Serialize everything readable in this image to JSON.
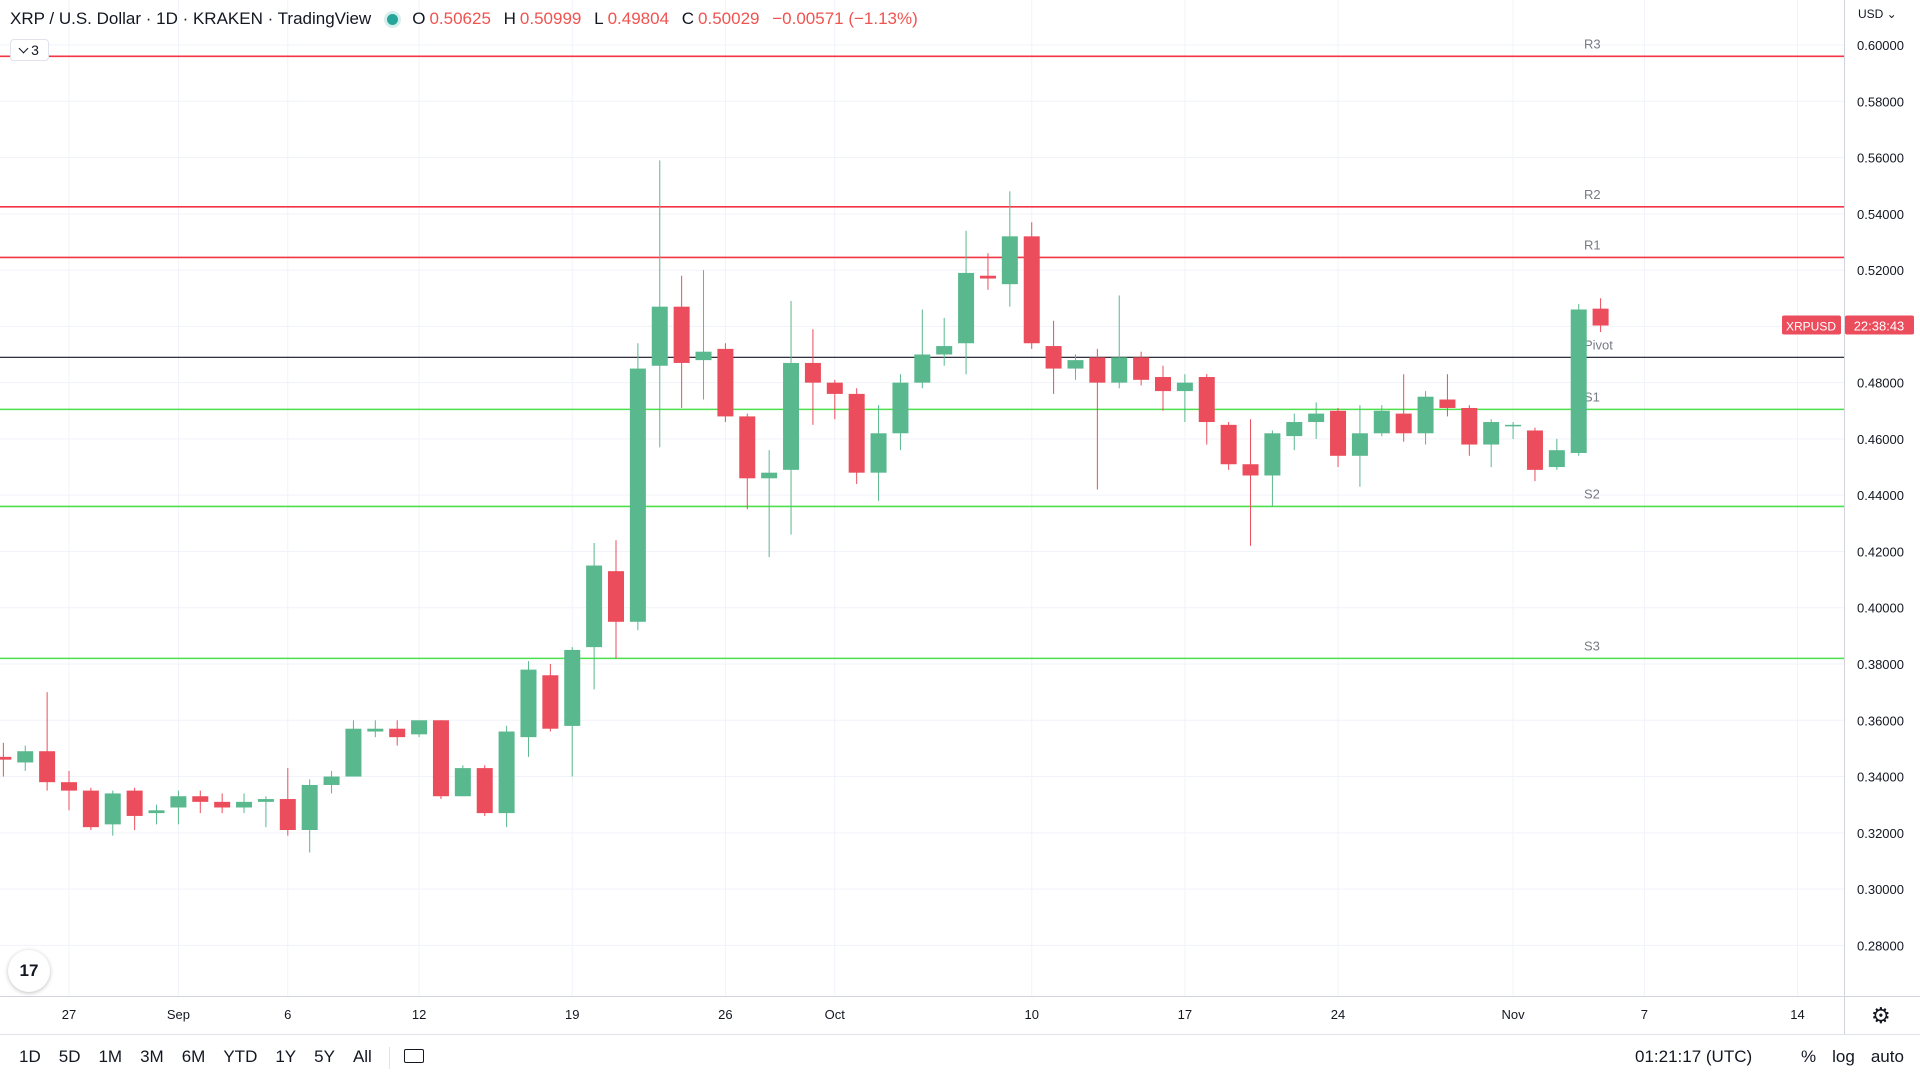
{
  "legend": {
    "title": "XRP / U.S. Dollar · 1D · KRAKEN · TradingView",
    "open_label": "O",
    "open": "0.50625",
    "high_label": "H",
    "high": "0.50999",
    "low_label": "L",
    "low": "0.49804",
    "close_label": "C",
    "close": "0.50029",
    "change": "−0.00571 (−1.13%)",
    "indicator_count": "3"
  },
  "currency": "USD",
  "symbol_tag": "XRPUSD",
  "countdown": "22:38:43",
  "bottom": {
    "ranges": [
      "1D",
      "5D",
      "1M",
      "3M",
      "6M",
      "YTD",
      "1Y",
      "5Y",
      "All"
    ],
    "clock": "01:21:17 (UTC)",
    "percent_label": "%",
    "log_label": "log",
    "auto_label": "auto"
  },
  "colors": {
    "up": "#5ab88e",
    "down": "#eb4d5c",
    "resistance": "#f23645",
    "support": "#4de04d",
    "pivot": "#131722",
    "grid": "#f0f3fa",
    "tag_bg": "#eb4d5c"
  },
  "chart_data": {
    "type": "candlestick",
    "ylim": [
      0.262,
      0.616
    ],
    "y_ticks": [
      "0.60000",
      "0.58000",
      "0.56000",
      "0.54000",
      "0.52000",
      "0.50000",
      "0.48000",
      "0.46000",
      "0.44000",
      "0.42000",
      "0.40000",
      "0.38000",
      "0.36000",
      "0.34000",
      "0.32000",
      "0.30000",
      "0.28000"
    ],
    "x_ticks": [
      {
        "label": "27",
        "day": 0
      },
      {
        "label": "Sep",
        "day": 5
      },
      {
        "label": "6",
        "day": 10
      },
      {
        "label": "12",
        "day": 16
      },
      {
        "label": "19",
        "day": 23
      },
      {
        "label": "26",
        "day": 30
      },
      {
        "label": "Oct",
        "day": 35
      },
      {
        "label": "10",
        "day": 44
      },
      {
        "label": "17",
        "day": 51
      },
      {
        "label": "24",
        "day": 58
      },
      {
        "label": "Nov",
        "day": 66
      },
      {
        "label": "7",
        "day": 72
      },
      {
        "label": "14",
        "day": 79
      }
    ],
    "levels": [
      {
        "name": "R3",
        "value": 0.596,
        "kind": "resistance"
      },
      {
        "name": "R2",
        "value": 0.5425,
        "kind": "resistance"
      },
      {
        "name": "R1",
        "value": 0.5245,
        "kind": "resistance"
      },
      {
        "name": "Pivot",
        "value": 0.489,
        "kind": "pivot"
      },
      {
        "name": "S1",
        "value": 0.4705,
        "kind": "support"
      },
      {
        "name": "S2",
        "value": 0.436,
        "kind": "support"
      },
      {
        "name": "S3",
        "value": 0.382,
        "kind": "support"
      }
    ],
    "candles": [
      {
        "day": -3,
        "o": 0.347,
        "h": 0.352,
        "l": 0.34,
        "c": 0.346
      },
      {
        "day": -2,
        "o": 0.345,
        "h": 0.351,
        "l": 0.342,
        "c": 0.349
      },
      {
        "day": -1,
        "o": 0.349,
        "h": 0.37,
        "l": 0.335,
        "c": 0.338
      },
      {
        "day": 0,
        "o": 0.338,
        "h": 0.342,
        "l": 0.328,
        "c": 0.335
      },
      {
        "day": 1,
        "o": 0.335,
        "h": 0.336,
        "l": 0.321,
        "c": 0.322
      },
      {
        "day": 2,
        "o": 0.323,
        "h": 0.335,
        "l": 0.319,
        "c": 0.334
      },
      {
        "day": 3,
        "o": 0.335,
        "h": 0.336,
        "l": 0.321,
        "c": 0.326
      },
      {
        "day": 4,
        "o": 0.327,
        "h": 0.33,
        "l": 0.323,
        "c": 0.328
      },
      {
        "day": 5,
        "o": 0.329,
        "h": 0.335,
        "l": 0.323,
        "c": 0.333
      },
      {
        "day": 6,
        "o": 0.333,
        "h": 0.335,
        "l": 0.327,
        "c": 0.331
      },
      {
        "day": 7,
        "o": 0.331,
        "h": 0.334,
        "l": 0.327,
        "c": 0.329
      },
      {
        "day": 8,
        "o": 0.329,
        "h": 0.334,
        "l": 0.327,
        "c": 0.331
      },
      {
        "day": 9,
        "o": 0.331,
        "h": 0.333,
        "l": 0.322,
        "c": 0.332
      },
      {
        "day": 10,
        "o": 0.332,
        "h": 0.343,
        "l": 0.319,
        "c": 0.321
      },
      {
        "day": 11,
        "o": 0.321,
        "h": 0.339,
        "l": 0.313,
        "c": 0.337
      },
      {
        "day": 12,
        "o": 0.337,
        "h": 0.342,
        "l": 0.334,
        "c": 0.34
      },
      {
        "day": 13,
        "o": 0.34,
        "h": 0.36,
        "l": 0.34,
        "c": 0.357
      },
      {
        "day": 14,
        "o": 0.356,
        "h": 0.36,
        "l": 0.354,
        "c": 0.357
      },
      {
        "day": 15,
        "o": 0.357,
        "h": 0.36,
        "l": 0.351,
        "c": 0.354
      },
      {
        "day": 16,
        "o": 0.355,
        "h": 0.36,
        "l": 0.354,
        "c": 0.36
      },
      {
        "day": 17,
        "o": 0.36,
        "h": 0.36,
        "l": 0.332,
        "c": 0.333
      },
      {
        "day": 18,
        "o": 0.333,
        "h": 0.344,
        "l": 0.333,
        "c": 0.343
      },
      {
        "day": 19,
        "o": 0.343,
        "h": 0.344,
        "l": 0.326,
        "c": 0.327
      },
      {
        "day": 20,
        "o": 0.327,
        "h": 0.358,
        "l": 0.322,
        "c": 0.356
      },
      {
        "day": 21,
        "o": 0.354,
        "h": 0.381,
        "l": 0.347,
        "c": 0.378
      },
      {
        "day": 22,
        "o": 0.376,
        "h": 0.38,
        "l": 0.356,
        "c": 0.357
      },
      {
        "day": 23,
        "o": 0.358,
        "h": 0.386,
        "l": 0.34,
        "c": 0.385
      },
      {
        "day": 24,
        "o": 0.386,
        "h": 0.423,
        "l": 0.371,
        "c": 0.415
      },
      {
        "day": 25,
        "o": 0.413,
        "h": 0.424,
        "l": 0.382,
        "c": 0.395
      },
      {
        "day": 26,
        "o": 0.395,
        "h": 0.494,
        "l": 0.392,
        "c": 0.485
      },
      {
        "day": 27,
        "o": 0.486,
        "h": 0.559,
        "l": 0.457,
        "c": 0.507
      },
      {
        "day": 28,
        "o": 0.507,
        "h": 0.518,
        "l": 0.471,
        "c": 0.487
      },
      {
        "day": 29,
        "o": 0.488,
        "h": 0.52,
        "l": 0.474,
        "c": 0.491
      },
      {
        "day": 30,
        "o": 0.492,
        "h": 0.494,
        "l": 0.466,
        "c": 0.468
      },
      {
        "day": 31,
        "o": 0.468,
        "h": 0.469,
        "l": 0.435,
        "c": 0.446
      },
      {
        "day": 32,
        "o": 0.446,
        "h": 0.456,
        "l": 0.418,
        "c": 0.448
      },
      {
        "day": 33,
        "o": 0.449,
        "h": 0.509,
        "l": 0.426,
        "c": 0.487
      },
      {
        "day": 34,
        "o": 0.487,
        "h": 0.499,
        "l": 0.465,
        "c": 0.48
      },
      {
        "day": 35,
        "o": 0.48,
        "h": 0.481,
        "l": 0.467,
        "c": 0.476
      },
      {
        "day": 36,
        "o": 0.476,
        "h": 0.478,
        "l": 0.444,
        "c": 0.448
      },
      {
        "day": 37,
        "o": 0.448,
        "h": 0.472,
        "l": 0.438,
        "c": 0.462
      },
      {
        "day": 38,
        "o": 0.462,
        "h": 0.483,
        "l": 0.456,
        "c": 0.48
      },
      {
        "day": 39,
        "o": 0.48,
        "h": 0.506,
        "l": 0.478,
        "c": 0.49
      },
      {
        "day": 40,
        "o": 0.49,
        "h": 0.503,
        "l": 0.486,
        "c": 0.493
      },
      {
        "day": 41,
        "o": 0.494,
        "h": 0.534,
        "l": 0.483,
        "c": 0.519
      },
      {
        "day": 42,
        "o": 0.518,
        "h": 0.526,
        "l": 0.513,
        "c": 0.517
      },
      {
        "day": 43,
        "o": 0.515,
        "h": 0.548,
        "l": 0.507,
        "c": 0.532
      },
      {
        "day": 44,
        "o": 0.532,
        "h": 0.537,
        "l": 0.492,
        "c": 0.494
      },
      {
        "day": 45,
        "o": 0.493,
        "h": 0.502,
        "l": 0.476,
        "c": 0.485
      },
      {
        "day": 46,
        "o": 0.485,
        "h": 0.49,
        "l": 0.481,
        "c": 0.488
      },
      {
        "day": 47,
        "o": 0.489,
        "h": 0.492,
        "l": 0.442,
        "c": 0.48
      },
      {
        "day": 48,
        "o": 0.48,
        "h": 0.511,
        "l": 0.478,
        "c": 0.489
      },
      {
        "day": 49,
        "o": 0.489,
        "h": 0.491,
        "l": 0.479,
        "c": 0.481
      },
      {
        "day": 50,
        "o": 0.482,
        "h": 0.486,
        "l": 0.47,
        "c": 0.477
      },
      {
        "day": 51,
        "o": 0.477,
        "h": 0.483,
        "l": 0.466,
        "c": 0.48
      },
      {
        "day": 52,
        "o": 0.482,
        "h": 0.483,
        "l": 0.458,
        "c": 0.466
      },
      {
        "day": 53,
        "o": 0.465,
        "h": 0.466,
        "l": 0.449,
        "c": 0.451
      },
      {
        "day": 54,
        "o": 0.451,
        "h": 0.467,
        "l": 0.422,
        "c": 0.447
      },
      {
        "day": 55,
        "o": 0.447,
        "h": 0.463,
        "l": 0.436,
        "c": 0.462
      },
      {
        "day": 56,
        "o": 0.461,
        "h": 0.469,
        "l": 0.456,
        "c": 0.466
      },
      {
        "day": 57,
        "o": 0.466,
        "h": 0.473,
        "l": 0.46,
        "c": 0.469
      },
      {
        "day": 58,
        "o": 0.47,
        "h": 0.471,
        "l": 0.45,
        "c": 0.454
      },
      {
        "day": 59,
        "o": 0.454,
        "h": 0.472,
        "l": 0.443,
        "c": 0.462
      },
      {
        "day": 60,
        "o": 0.462,
        "h": 0.472,
        "l": 0.461,
        "c": 0.47
      },
      {
        "day": 61,
        "o": 0.469,
        "h": 0.483,
        "l": 0.459,
        "c": 0.462
      },
      {
        "day": 62,
        "o": 0.462,
        "h": 0.477,
        "l": 0.458,
        "c": 0.475
      },
      {
        "day": 63,
        "o": 0.474,
        "h": 0.483,
        "l": 0.468,
        "c": 0.471
      },
      {
        "day": 64,
        "o": 0.471,
        "h": 0.472,
        "l": 0.454,
        "c": 0.458
      },
      {
        "day": 65,
        "o": 0.458,
        "h": 0.467,
        "l": 0.45,
        "c": 0.466
      },
      {
        "day": 66,
        "o": 0.465,
        "h": 0.466,
        "l": 0.46,
        "c": 0.465
      },
      {
        "day": 67,
        "o": 0.463,
        "h": 0.464,
        "l": 0.445,
        "c": 0.449
      },
      {
        "day": 68,
        "o": 0.45,
        "h": 0.46,
        "l": 0.449,
        "c": 0.456
      },
      {
        "day": 69,
        "o": 0.455,
        "h": 0.508,
        "l": 0.454,
        "c": 0.506
      },
      {
        "day": 70,
        "o": 0.5063,
        "h": 0.51,
        "l": 0.498,
        "c": 0.5003
      }
    ]
  }
}
